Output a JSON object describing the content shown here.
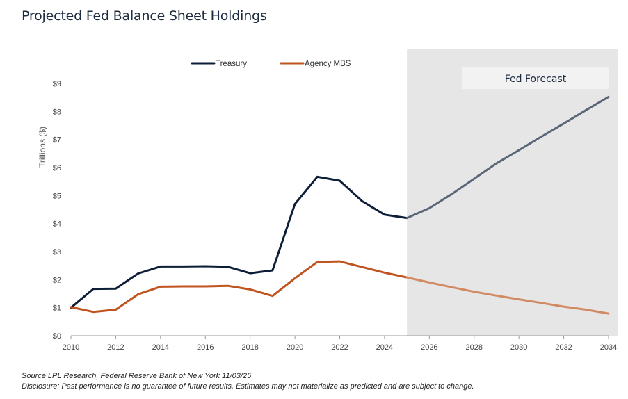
{
  "chart_data": {
    "type": "line",
    "title": "Projected Fed Balance Sheet Holdings",
    "ylabel": "Trillions ($)",
    "xlabel": "",
    "xlim": [
      2010,
      2034
    ],
    "ylim": [
      0,
      9
    ],
    "x_ticks": [
      "2010",
      "2012",
      "2014",
      "2016",
      "2018",
      "2020",
      "2022",
      "2024",
      "2026",
      "2028",
      "2030",
      "2032",
      "2034"
    ],
    "y_ticks": [
      "$0",
      "$1",
      "$2",
      "$3",
      "$4",
      "$5",
      "$6",
      "$7",
      "$8",
      "$9"
    ],
    "legend": {
      "placement": "top"
    },
    "forecast_region": {
      "label": "Fed Forecast",
      "x_start": 2025,
      "x_end": 2034
    },
    "series": [
      {
        "name": "Treasury",
        "color": "#0d1e38",
        "forecast_color": "#5b6578",
        "x": [
          2010,
          2011,
          2012,
          2013,
          2014,
          2015,
          2016,
          2017,
          2018,
          2019,
          2020,
          2021,
          2022,
          2023,
          2024,
          2025,
          2026,
          2027,
          2028,
          2029,
          2030,
          2031,
          2032,
          2033,
          2034
        ],
        "values": [
          1.0,
          1.67,
          1.68,
          2.22,
          2.47,
          2.47,
          2.48,
          2.46,
          2.23,
          2.33,
          4.7,
          5.67,
          5.53,
          4.8,
          4.32,
          4.2,
          4.55,
          5.05,
          5.6,
          6.15,
          6.62,
          7.1,
          7.57,
          8.05,
          8.52
        ]
      },
      {
        "name": "Agency MBS",
        "color": "#c0541f",
        "forecast_color": "#d18b63",
        "x": [
          2010,
          2011,
          2012,
          2013,
          2014,
          2015,
          2016,
          2017,
          2018,
          2019,
          2020,
          2021,
          2022,
          2023,
          2024,
          2025,
          2026,
          2027,
          2028,
          2029,
          2030,
          2031,
          2032,
          2033,
          2034
        ],
        "values": [
          1.02,
          0.85,
          0.93,
          1.48,
          1.75,
          1.76,
          1.76,
          1.78,
          1.65,
          1.42,
          2.05,
          2.63,
          2.65,
          2.45,
          2.25,
          2.08,
          1.9,
          1.73,
          1.57,
          1.43,
          1.3,
          1.17,
          1.04,
          0.93,
          0.79
        ]
      }
    ]
  },
  "footnotes": {
    "source": "Source LPL Research, Federal Reserve Bank of New York 11/03/25",
    "disclosure": "Disclosure: Past performance is no guarantee of future results. Estimates may not materialize as predicted and are subject to change."
  }
}
